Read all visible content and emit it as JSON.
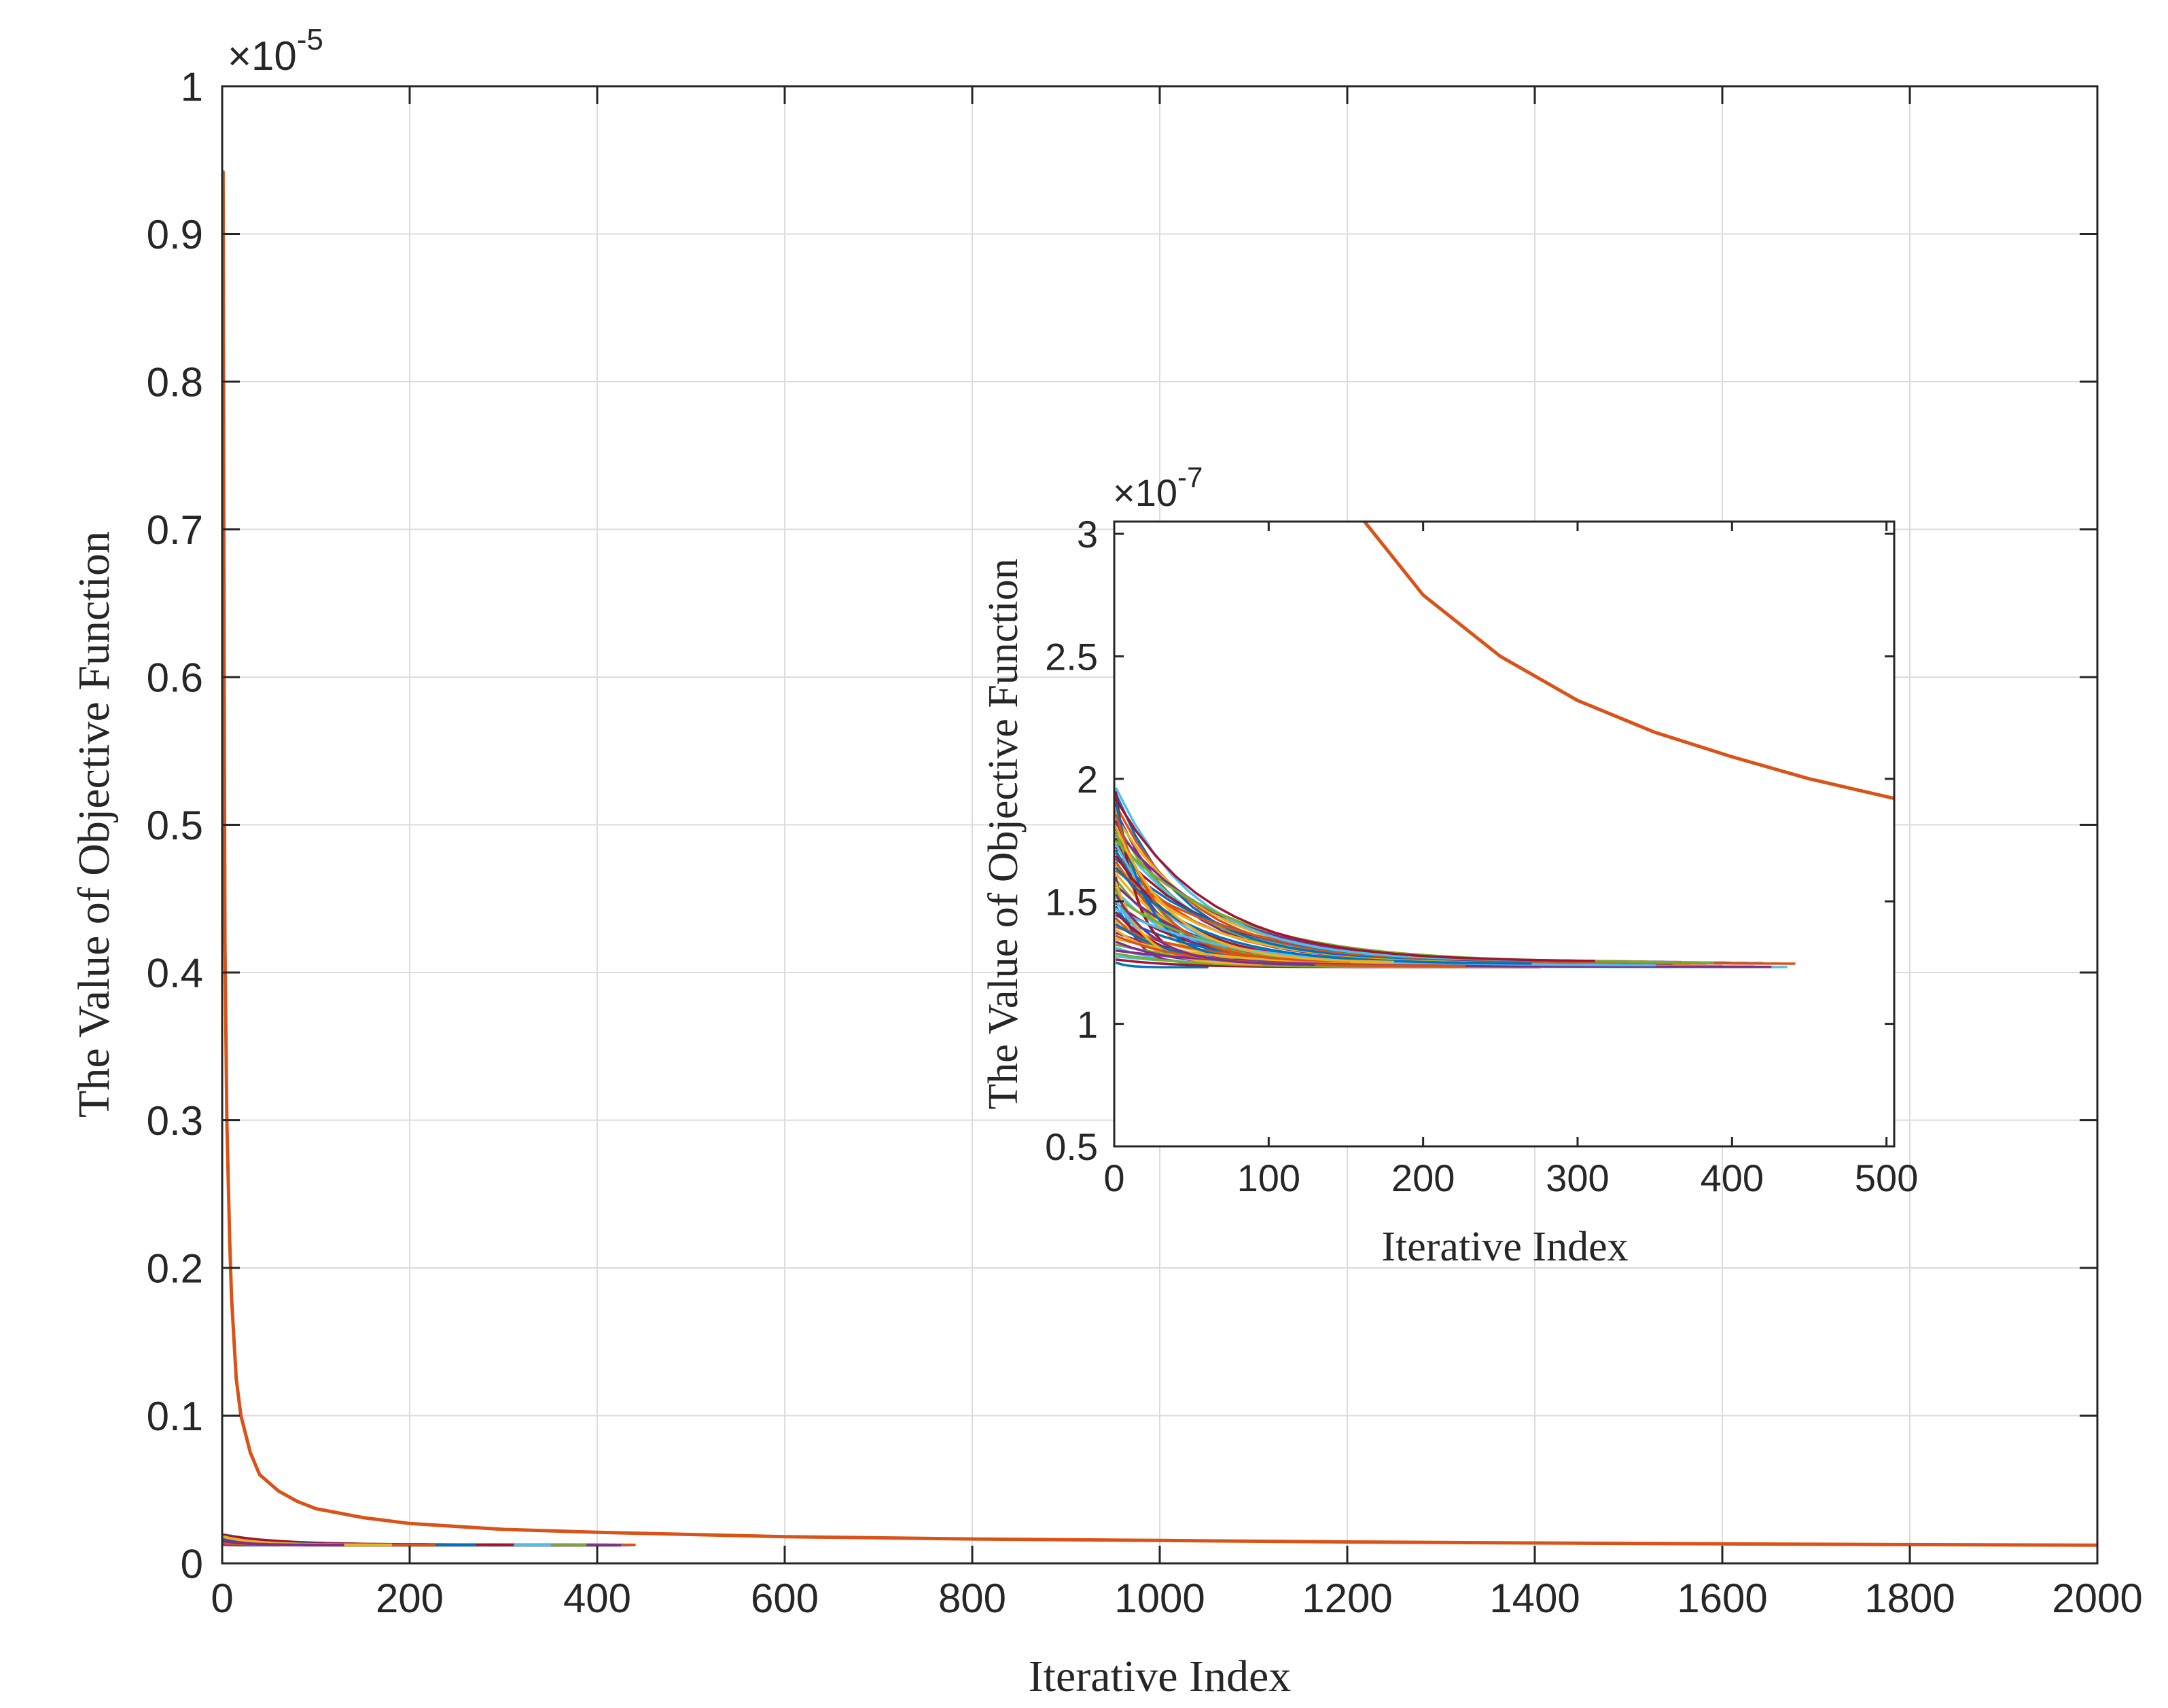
{
  "chart_data": [
    {
      "id": "main",
      "type": "line",
      "xlabel": "Iterative Index",
      "ylabel": "The Value of Objective Function",
      "xlim": [
        0,
        2000
      ],
      "ylim": [
        0,
        1
      ],
      "y_exponent_label": "×10",
      "y_exponent_power": "-5",
      "xticks": [
        0,
        200,
        400,
        600,
        800,
        1000,
        1200,
        1400,
        1600,
        1800,
        2000
      ],
      "xtick_labels": [
        "0",
        "200",
        "400",
        "600",
        "800",
        "1000",
        "1200",
        "1400",
        "1600",
        "1800",
        "2000"
      ],
      "yticks": [
        0,
        0.1,
        0.2,
        0.3,
        0.4,
        0.5,
        0.6,
        0.7,
        0.8,
        0.9,
        1
      ],
      "ytick_labels": [
        "0",
        "0.1",
        "0.2",
        "0.3",
        "0.4",
        "0.5",
        "0.6",
        "0.7",
        "0.8",
        "0.9",
        "1"
      ],
      "grid": true,
      "curve_color": "#D95319",
      "main_curve": {
        "x": [
          1,
          2,
          3,
          5,
          8,
          10,
          15,
          20,
          30,
          40,
          60,
          80,
          100,
          150,
          200,
          300,
          400,
          600,
          800,
          1000,
          1200,
          1400,
          1600,
          1800,
          2000
        ],
        "y": [
          0.942,
          0.62,
          0.42,
          0.3,
          0.22,
          0.18,
          0.125,
          0.1,
          0.075,
          0.06,
          0.049,
          0.042,
          0.037,
          0.031,
          0.027,
          0.023,
          0.021,
          0.018,
          0.0165,
          0.0155,
          0.0145,
          0.0138,
          0.0132,
          0.0127,
          0.0123
        ]
      },
      "cluster_curves": {
        "count": 60,
        "colors": [
          "#0072BD",
          "#D95319",
          "#EDB120",
          "#7E2F8E",
          "#77AC30",
          "#4DBEEE",
          "#A2142F"
        ],
        "start_min": 0.0125,
        "start_max": 0.0195,
        "end_value": 0.0123,
        "length_min": 60,
        "length_max": 440
      }
    },
    {
      "id": "inset",
      "type": "line",
      "xlabel": "Iterative Index",
      "ylabel": "The Value of Objective Function",
      "xlim": [
        0,
        505
      ],
      "ylim": [
        0.5,
        3.05
      ],
      "y_exponent_label": "×10",
      "y_exponent_power": "-7",
      "xticks": [
        0,
        100,
        200,
        300,
        400,
        500
      ],
      "xtick_labels": [
        "0",
        "100",
        "200",
        "300",
        "400",
        "500"
      ],
      "yticks": [
        0.5,
        1,
        1.5,
        2,
        2.5,
        3
      ],
      "ytick_labels": [
        "0.5",
        "1",
        "1.5",
        "2",
        "2.5",
        "3"
      ],
      "grid": false,
      "main_curve": {
        "x": [
          162,
          200,
          250,
          300,
          350,
          400,
          450,
          505
        ],
        "y": [
          3.05,
          2.75,
          2.5,
          2.32,
          2.19,
          2.09,
          2.0,
          1.92
        ]
      },
      "cluster_curves": {
        "count": 60,
        "colors": [
          "#0072BD",
          "#D95319",
          "#EDB120",
          "#7E2F8E",
          "#77AC30",
          "#4DBEEE",
          "#A2142F"
        ],
        "start_min": 1.25,
        "start_max": 1.95,
        "end_value": 1.23,
        "length_min": 60,
        "length_max": 440
      }
    }
  ]
}
